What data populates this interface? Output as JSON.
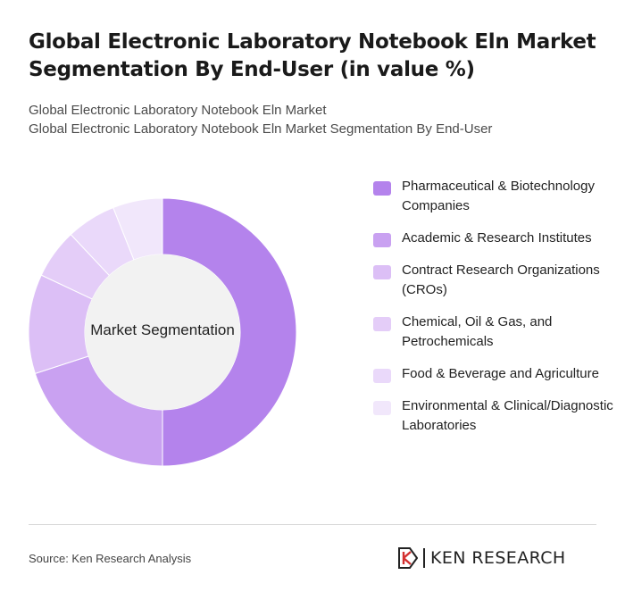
{
  "header": {
    "title": "Global Electronic Laboratory Notebook Eln Market Segmentation By End-User (in value %)",
    "subtitle_line1": "Global Electronic Laboratory Notebook Eln Market",
    "subtitle_line2": "Global Electronic Laboratory Notebook Eln Market Segmentation By End-User"
  },
  "chart_data": {
    "type": "pie",
    "variant": "donut",
    "center_label": "Market Segmentation",
    "categories": [
      "Pharmaceutical & Biotechnology Companies",
      "Academic & Research Institutes",
      "Contract Research Organizations (CROs)",
      "Chemical, Oil & Gas, and Petrochemicals",
      "Food & Beverage and Agriculture",
      "Environmental & Clinical/Diagnostic Laboratories"
    ],
    "values": [
      50,
      20,
      12,
      6,
      6,
      6
    ],
    "colors": [
      "#b483ec",
      "#c9a1f1",
      "#dcbff6",
      "#e4cdf8",
      "#ead9fa",
      "#f1e7fb"
    ],
    "legend_position": "right"
  },
  "footer": {
    "source": "Source: Ken Research Analysis",
    "logo_text": "KEN RESEARCH"
  }
}
